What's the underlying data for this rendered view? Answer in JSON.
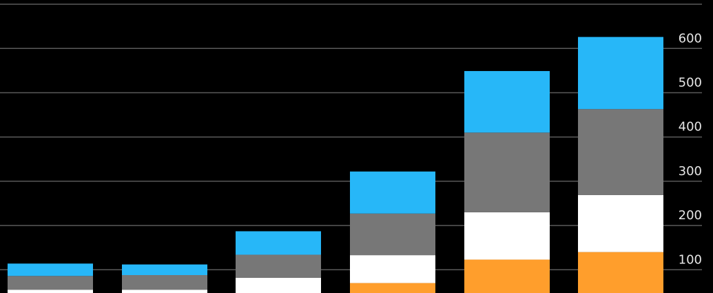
{
  "chart_data": {
    "type": "bar",
    "stacked": true,
    "title": "",
    "xlabel": "",
    "ylabel": "",
    "categories": [
      "",
      "",
      "",
      "",
      "",
      ""
    ],
    "ylim": [
      0,
      700
    ],
    "yticks": [
      "100",
      "200",
      "300",
      "400",
      "500",
      "600"
    ],
    "y_axis_side": "right",
    "grid": true,
    "legend": "none",
    "background": "#000000",
    "series": [
      {
        "color": "#ff9e2c",
        "values": [
          null,
          null,
          null,
          70,
          123,
          140
        ]
      },
      {
        "color": "#ffffff",
        "values": [
          55,
          55,
          82,
          63,
          107,
          129
        ]
      },
      {
        "color": "#777777",
        "values": [
          31,
          33,
          52,
          94,
          180,
          194
        ]
      },
      {
        "color": "#27b7f8",
        "values": [
          28,
          24,
          53,
          95,
          139,
          163
        ]
      }
    ]
  }
}
